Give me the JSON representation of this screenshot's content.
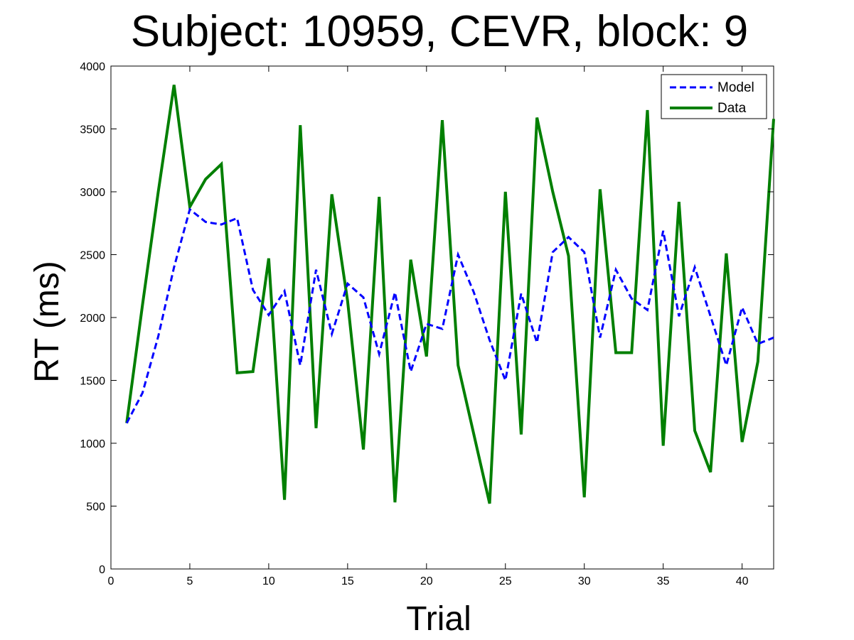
{
  "chart_data": {
    "type": "line",
    "title": "Subject: 10959, CEVR, block: 9",
    "xlabel": "Trial",
    "ylabel": "RT (ms)",
    "xlim": [
      0,
      42
    ],
    "ylim": [
      0,
      4000
    ],
    "xticks": [
      0,
      5,
      10,
      15,
      20,
      25,
      30,
      35,
      40
    ],
    "yticks": [
      0,
      500,
      1000,
      1500,
      2000,
      2500,
      3000,
      3500,
      4000
    ],
    "grid": false,
    "legend_position": "top-right",
    "x": [
      1,
      2,
      3,
      4,
      5,
      6,
      7,
      8,
      9,
      10,
      11,
      12,
      13,
      14,
      15,
      16,
      17,
      18,
      19,
      20,
      21,
      22,
      23,
      24,
      25,
      26,
      27,
      28,
      29,
      30,
      31,
      32,
      33,
      34,
      35,
      36,
      37,
      38,
      39,
      40,
      41,
      42
    ],
    "series": [
      {
        "name": "Model",
        "color": "#0000ff",
        "style": "dashed",
        "values": [
          1160,
          1400,
          1850,
          2400,
          2860,
          2760,
          2740,
          2790,
          2220,
          2020,
          2210,
          1620,
          2380,
          1870,
          2270,
          2160,
          1710,
          2200,
          1570,
          1950,
          1910,
          2500,
          2200,
          1820,
          1500,
          2190,
          1800,
          2520,
          2640,
          2520,
          1840,
          2380,
          2150,
          2060,
          2690,
          2010,
          2400,
          2010,
          1620,
          2080,
          1790,
          1840
        ]
      },
      {
        "name": "Data",
        "color": "#007f00",
        "style": "solid",
        "values": [
          1160,
          2100,
          3000,
          3850,
          2880,
          3100,
          3220,
          1560,
          1570,
          2470,
          550,
          3530,
          1120,
          2980,
          2130,
          950,
          2960,
          530,
          2460,
          1690,
          3570,
          1620,
          1070,
          520,
          3000,
          1070,
          3590,
          3000,
          2490,
          570,
          3020,
          1720,
          1720,
          3650,
          980,
          2920,
          1100,
          770,
          2510,
          1010,
          1650,
          3580
        ]
      }
    ]
  }
}
